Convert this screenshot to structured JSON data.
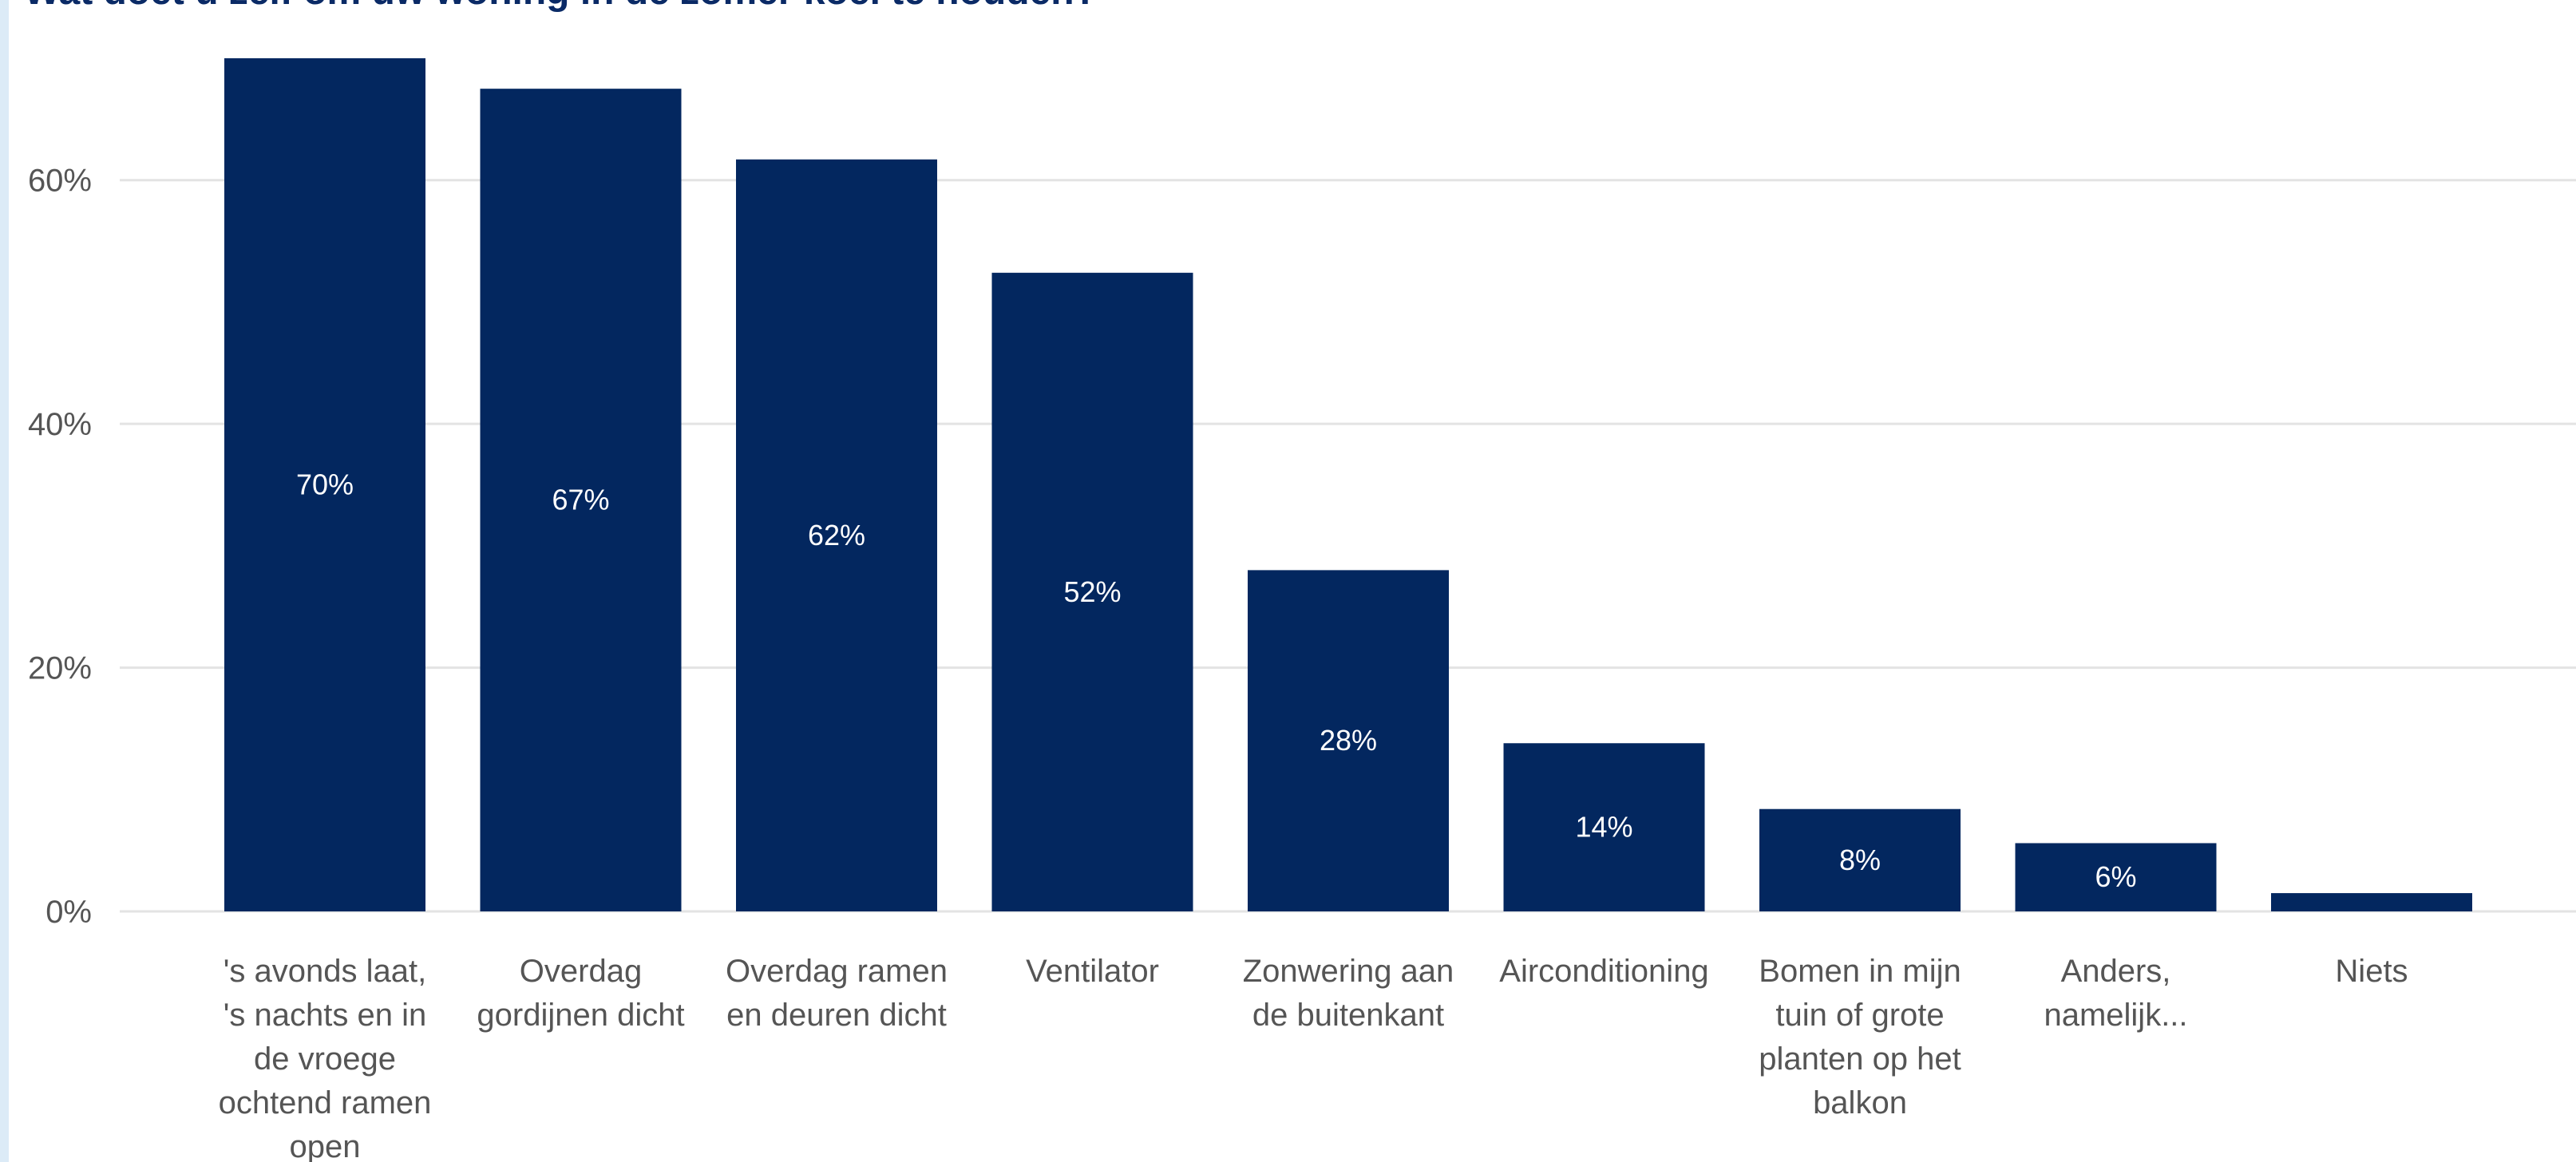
{
  "colors": {
    "bar": "#03275f",
    "grid": "#e3e3e3",
    "axis_text": "#555555",
    "data_label": "#ffffff",
    "title": "#0a2a66",
    "left_strip": "#dcebf7"
  },
  "chart_data": {
    "type": "bar",
    "title": "Wat doet u zelf om uw woning in de zomer koel te houden?",
    "xlabel": "",
    "ylabel": "",
    "ylim": [
      0,
      0.7
    ],
    "yticks": [
      0,
      0.2,
      0.4,
      0.6
    ],
    "ytick_labels": [
      "0%",
      "20%",
      "40%",
      "60%"
    ],
    "grid": true,
    "legend": "none",
    "categories": [
      "'s avonds laat, 's nachts en in de vroege ochtend ramen open",
      "Overdag gordijnen dicht",
      "Overdag ramen en deuren dicht",
      "Ventilator",
      "Zonwering aan de buitenkant",
      "Airconditioning",
      "Bomen in mijn tuin of grote planten op het balkon",
      "Anders, namelijk...",
      "Niets"
    ],
    "category_lines": [
      [
        "'s avonds laat,",
        "'s nachts en in",
        "de vroege",
        "ochtend ramen",
        "open"
      ],
      [
        "Overdag",
        "gordijnen dicht"
      ],
      [
        "Overdag ramen",
        "en deuren dicht"
      ],
      [
        "Ventilator"
      ],
      [
        "Zonwering aan",
        "de buitenkant"
      ],
      [
        "Airconditioning"
      ],
      [
        "Bomen in mijn",
        "tuin of grote",
        "planten op het",
        "balkon"
      ],
      [
        "Anders,",
        "namelijk..."
      ],
      [
        "Niets"
      ]
    ],
    "values": [
      0.7,
      0.675,
      0.617,
      0.524,
      0.28,
      0.138,
      0.084,
      0.056,
      0.015
    ],
    "data_labels": [
      "70%",
      "67%",
      "62%",
      "52%",
      "28%",
      "14%",
      "8%",
      "6%",
      ""
    ]
  }
}
